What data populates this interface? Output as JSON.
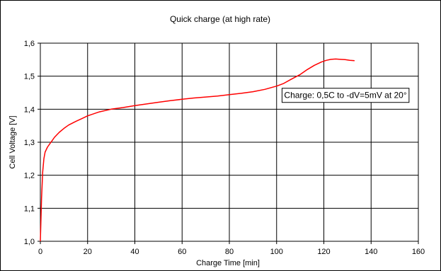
{
  "chart_data": {
    "type": "line",
    "title": "Quick charge (at high rate)",
    "xlabel": "Charge Time [min]",
    "ylabel": "Cell Voltage [V]",
    "xlim": [
      0,
      160
    ],
    "ylim": [
      1.0,
      1.6
    ],
    "x_ticks": [
      0,
      20,
      40,
      60,
      80,
      100,
      120,
      140,
      160
    ],
    "x_tick_labels": [
      "0",
      "20",
      "40",
      "60",
      "80",
      "100",
      "120",
      "140",
      "160"
    ],
    "y_ticks": [
      1.0,
      1.1,
      1.2,
      1.3,
      1.4,
      1.5,
      1.6
    ],
    "y_tick_labels": [
      "1,0",
      "1,1",
      "1,2",
      "1,3",
      "1,4",
      "1,5",
      "1,6"
    ],
    "grid": true,
    "annotation": "Charge: 0,5C to -dV=5mV at 20°",
    "series": [
      {
        "color": "#ff0000",
        "x": [
          0,
          0.5,
          1,
          1.5,
          2,
          3,
          4,
          5,
          6,
          8,
          10,
          12,
          15,
          18,
          20,
          25,
          30,
          35,
          40,
          45,
          50,
          55,
          60,
          65,
          70,
          75,
          80,
          85,
          90,
          95,
          100,
          103,
          106,
          110,
          113,
          116,
          119,
          121,
          123,
          125,
          127,
          129,
          131,
          133
        ],
        "y": [
          1.0,
          1.13,
          1.21,
          1.25,
          1.27,
          1.285,
          1.295,
          1.305,
          1.315,
          1.33,
          1.342,
          1.352,
          1.363,
          1.373,
          1.38,
          1.392,
          1.4,
          1.405,
          1.411,
          1.416,
          1.421,
          1.426,
          1.43,
          1.434,
          1.437,
          1.44,
          1.444,
          1.448,
          1.453,
          1.46,
          1.47,
          1.478,
          1.49,
          1.505,
          1.52,
          1.533,
          1.543,
          1.548,
          1.551,
          1.552,
          1.551,
          1.55,
          1.548,
          1.547
        ]
      }
    ]
  }
}
